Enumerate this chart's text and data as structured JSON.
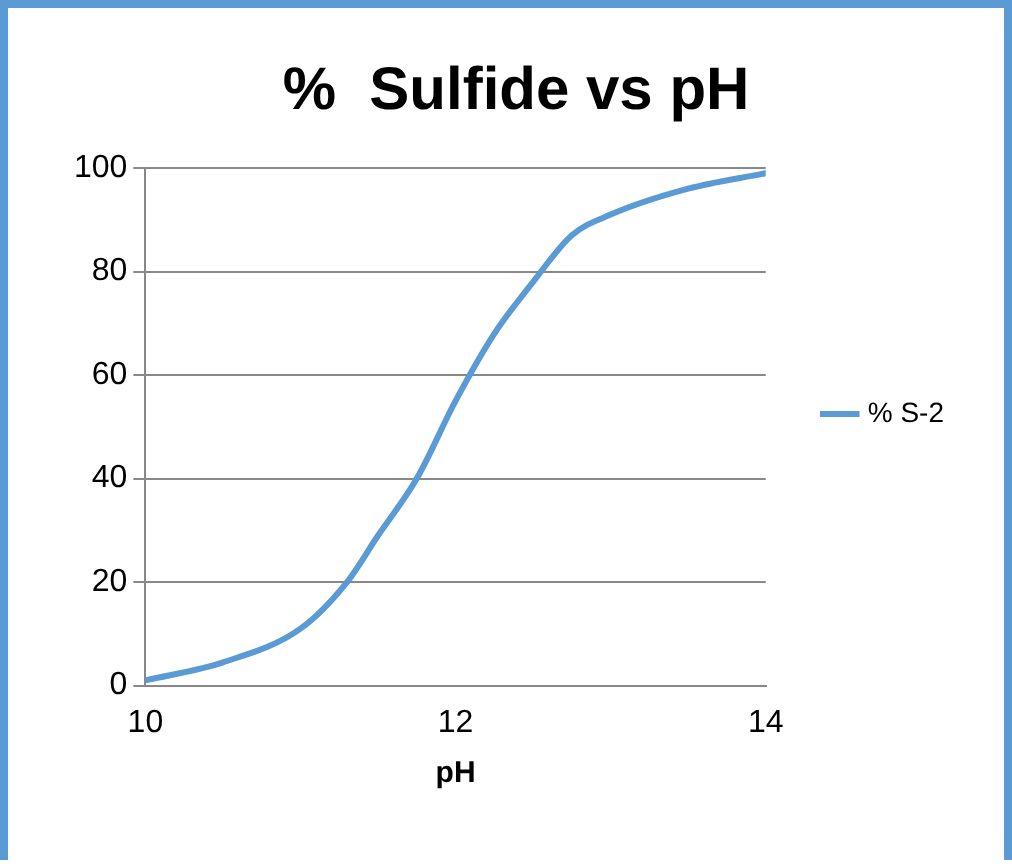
{
  "chart_data": {
    "type": "line",
    "title": "%  Sulfide vs pH",
    "xlabel": "pH",
    "x": [
      10,
      10.5,
      11,
      11.3,
      11.5,
      11.75,
      12,
      12.25,
      12.5,
      12.75,
      13,
      13.5,
      14
    ],
    "series": [
      {
        "name": "% S-2",
        "color": "#5b9bd5",
        "values": [
          1,
          4.5,
          11,
          20,
          29,
          40,
          55,
          68,
          78,
          87,
          91,
          96,
          99
        ]
      }
    ],
    "xlim": [
      10,
      14
    ],
    "xticks": [
      10,
      12,
      14
    ],
    "ylim": [
      0,
      100
    ],
    "yticks": [
      0,
      20,
      40,
      60,
      80,
      100
    ],
    "grid": "y",
    "legend": "right",
    "marker": "none",
    "line_style": "solid"
  }
}
